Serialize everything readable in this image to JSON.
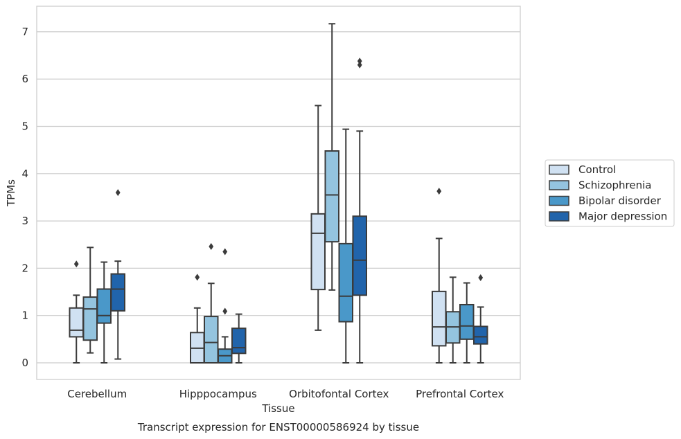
{
  "chart_data": {
    "type": "box",
    "caption": "Transcript expression for ENST00000586924 by tissue",
    "xlabel": "Tissue",
    "ylabel": "TPMs",
    "ylim": [
      -0.35,
      7.55
    ],
    "yticks": [
      0,
      1,
      2,
      3,
      4,
      5,
      6,
      7
    ],
    "grid": "horizontal",
    "legend_position": "right",
    "categories": [
      "Cerebellum",
      "Hipppocampus",
      "Orbitofontal Cortex",
      "Prefrontal Cortex"
    ],
    "series": [
      {
        "name": "Control",
        "color": "#d0e1f2",
        "boxes": [
          {
            "whislo": 0.0,
            "q1": 0.55,
            "median": 0.69,
            "q3": 1.16,
            "whishi": 1.43,
            "fliers": [
              2.09
            ]
          },
          {
            "whislo": 0.0,
            "q1": 0.0,
            "median": 0.31,
            "q3": 0.64,
            "whishi": 1.16,
            "fliers": [
              1.81
            ]
          },
          {
            "whislo": 0.69,
            "q1": 1.55,
            "median": 2.74,
            "q3": 3.15,
            "whishi": 5.44,
            "fliers": []
          },
          {
            "whislo": 0.0,
            "q1": 0.36,
            "median": 0.76,
            "q3": 1.51,
            "whishi": 2.63,
            "fliers": [
              3.63
            ]
          }
        ]
      },
      {
        "name": "Schizophrenia",
        "color": "#94c4df",
        "boxes": [
          {
            "whislo": 0.21,
            "q1": 0.48,
            "median": 1.14,
            "q3": 1.39,
            "whishi": 2.44,
            "fliers": []
          },
          {
            "whislo": 0.0,
            "q1": 0.0,
            "median": 0.43,
            "q3": 0.98,
            "whishi": 1.68,
            "fliers": [
              2.46
            ]
          },
          {
            "whislo": 1.54,
            "q1": 2.56,
            "median": 3.55,
            "q3": 4.48,
            "whishi": 7.17,
            "fliers": []
          },
          {
            "whislo": 0.0,
            "q1": 0.42,
            "median": 0.76,
            "q3": 1.08,
            "whishi": 1.81,
            "fliers": []
          }
        ]
      },
      {
        "name": "Bipolar disorder",
        "color": "#4a98c9",
        "boxes": [
          {
            "whislo": 0.0,
            "q1": 0.84,
            "median": 1.0,
            "q3": 1.56,
            "whishi": 2.13,
            "fliers": []
          },
          {
            "whislo": 0.0,
            "q1": 0.0,
            "median": 0.15,
            "q3": 0.29,
            "whishi": 0.55,
            "fliers": [
              1.09,
              2.35
            ]
          },
          {
            "whislo": 0.0,
            "q1": 0.87,
            "median": 1.41,
            "q3": 2.52,
            "whishi": 4.94,
            "fliers": []
          },
          {
            "whislo": 0.0,
            "q1": 0.5,
            "median": 0.78,
            "q3": 1.23,
            "whishi": 1.69,
            "fliers": []
          }
        ]
      },
      {
        "name": "Major depression",
        "color": "#2164ab",
        "boxes": [
          {
            "whislo": 0.08,
            "q1": 1.1,
            "median": 1.56,
            "q3": 1.88,
            "whishi": 2.15,
            "fliers": [
              3.6
            ]
          },
          {
            "whislo": 0.0,
            "q1": 0.2,
            "median": 0.32,
            "q3": 0.73,
            "whishi": 1.03,
            "fliers": []
          },
          {
            "whislo": 0.0,
            "q1": 1.43,
            "median": 2.17,
            "q3": 3.1,
            "whishi": 4.9,
            "fliers": [
              6.3,
              6.38
            ]
          },
          {
            "whislo": 0.0,
            "q1": 0.4,
            "median": 0.55,
            "q3": 0.77,
            "whishi": 1.18,
            "fliers": [
              1.8
            ]
          }
        ]
      }
    ]
  }
}
